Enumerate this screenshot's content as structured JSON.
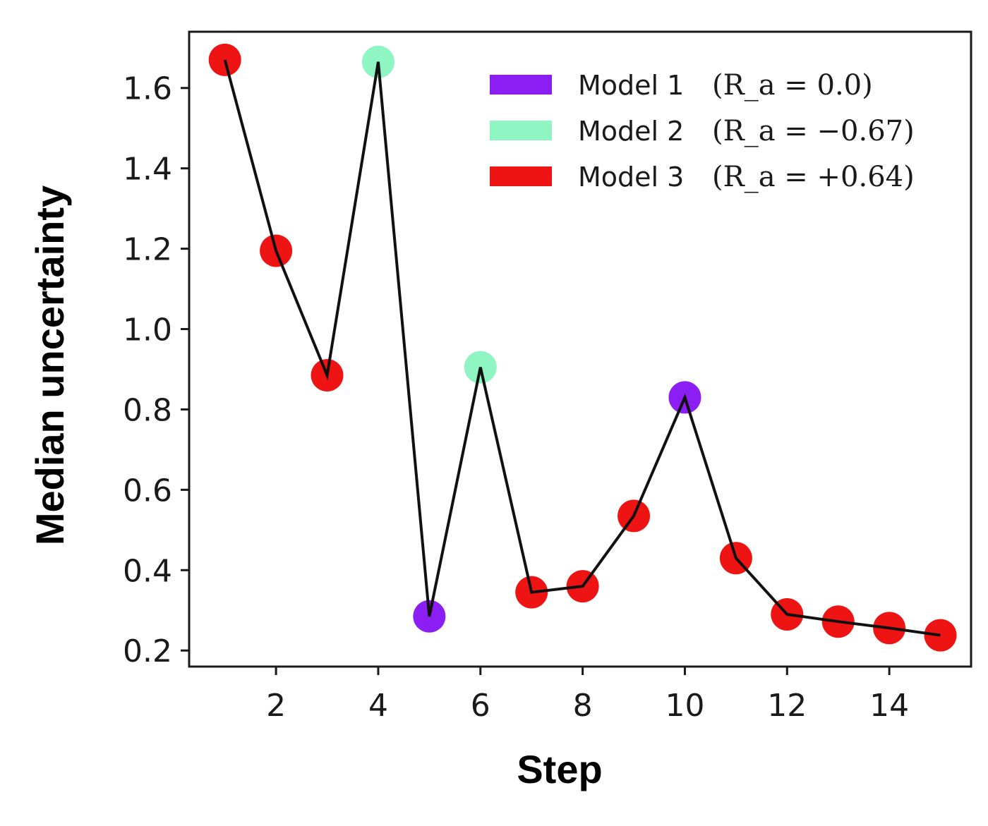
{
  "chart_data": {
    "type": "line",
    "xlabel": "Step",
    "ylabel": "Median uncertainty",
    "xlim": [
      0.3,
      15.6
    ],
    "ylim": [
      0.16,
      1.74
    ],
    "xticks": [
      2,
      4,
      6,
      8,
      10,
      12,
      14
    ],
    "yticks": [
      0.2,
      0.4,
      0.6,
      0.8,
      1.0,
      1.2,
      1.4,
      1.6
    ],
    "grid": false,
    "legend_position": "top-right",
    "line_color": "#111111",
    "models": [
      {
        "id": 1,
        "name": "Model 1",
        "math": "(R_a = 0.0)",
        "color": "#8b1ef2"
      },
      {
        "id": 2,
        "name": "Model 2",
        "math": "(R_a = −0.67)",
        "color": "#8ff5c2"
      },
      {
        "id": 3,
        "name": "Model 3",
        "math": "(R_a = +0.64)",
        "color": "#ee1414"
      }
    ],
    "points": [
      {
        "x": 1,
        "y": 1.67,
        "model": 3
      },
      {
        "x": 2,
        "y": 1.195,
        "model": 3
      },
      {
        "x": 3,
        "y": 0.885,
        "model": 3
      },
      {
        "x": 4,
        "y": 1.665,
        "model": 2
      },
      {
        "x": 5,
        "y": 0.285,
        "model": 1
      },
      {
        "x": 6,
        "y": 0.905,
        "model": 2
      },
      {
        "x": 7,
        "y": 0.345,
        "model": 3
      },
      {
        "x": 8,
        "y": 0.36,
        "model": 3
      },
      {
        "x": 9,
        "y": 0.535,
        "model": 3
      },
      {
        "x": 10,
        "y": 0.83,
        "model": 1
      },
      {
        "x": 11,
        "y": 0.43,
        "model": 3
      },
      {
        "x": 12,
        "y": 0.29,
        "model": 3
      },
      {
        "x": 13,
        "y": 0.272,
        "model": 3
      },
      {
        "x": 14,
        "y": 0.256,
        "model": 3
      },
      {
        "x": 15,
        "y": 0.238,
        "model": 3
      }
    ]
  }
}
